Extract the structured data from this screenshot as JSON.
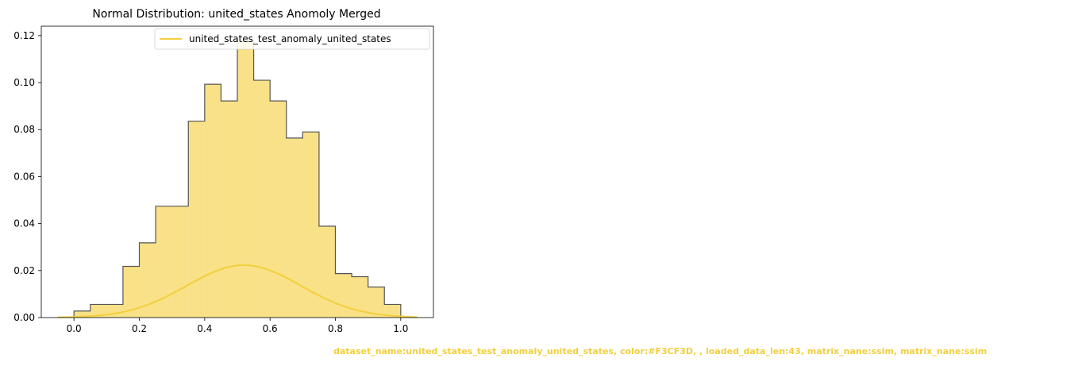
{
  "chart_data": {
    "type": "bar",
    "title": "Normal Distribution: united_states Anomoly Merged",
    "xlabel": "",
    "ylabel": "",
    "xlim": [
      -0.1,
      1.1
    ],
    "ylim": [
      0,
      0.124
    ],
    "grid": false,
    "legend_position": "top-right",
    "x_ticks": [
      0.0,
      0.2,
      0.4,
      0.6,
      0.8,
      1.0
    ],
    "x_tick_labels": [
      "0.0",
      "0.2",
      "0.4",
      "0.6",
      "0.8",
      "1.0"
    ],
    "y_ticks": [
      0.0,
      0.02,
      0.04,
      0.06,
      0.08,
      0.1,
      0.12
    ],
    "y_tick_labels": [
      "0.00",
      "0.02",
      "0.04",
      "0.06",
      "0.08",
      "0.10",
      "0.12"
    ],
    "histogram": {
      "bin_edges": [
        0.0,
        0.05,
        0.1,
        0.15,
        0.2,
        0.25,
        0.3,
        0.35,
        0.4,
        0.45,
        0.5,
        0.55,
        0.6,
        0.65,
        0.7,
        0.75,
        0.8,
        0.85,
        0.9,
        0.95,
        1.0
      ],
      "values": [
        0.0028,
        0.0056,
        0.0056,
        0.0218,
        0.0318,
        0.0474,
        0.0474,
        0.0836,
        0.0993,
        0.0922,
        0.1174,
        0.101,
        0.0922,
        0.0764,
        0.079,
        0.0389,
        0.0187,
        0.0174,
        0.013,
        0.0056
      ],
      "fill_color": "#F3CF3D",
      "fill_opacity": 0.62,
      "edge_color": "#555555"
    },
    "series": [
      {
        "name": "united_states_test_anomaly_united_states",
        "type": "line",
        "curve": "normal",
        "mean": 0.52,
        "peak": 0.0223,
        "std": 0.175,
        "x_range": [
          -0.05,
          1.05
        ],
        "color": "#F3CF3D"
      }
    ]
  },
  "footer": {
    "text": "dataset_name:united_states_test_anomaly_united_states, color:#F3CF3D, , loaded_data_len:43, matrix_nane:ssim, matrix_nane:ssim",
    "color": "#F3CF3D"
  }
}
